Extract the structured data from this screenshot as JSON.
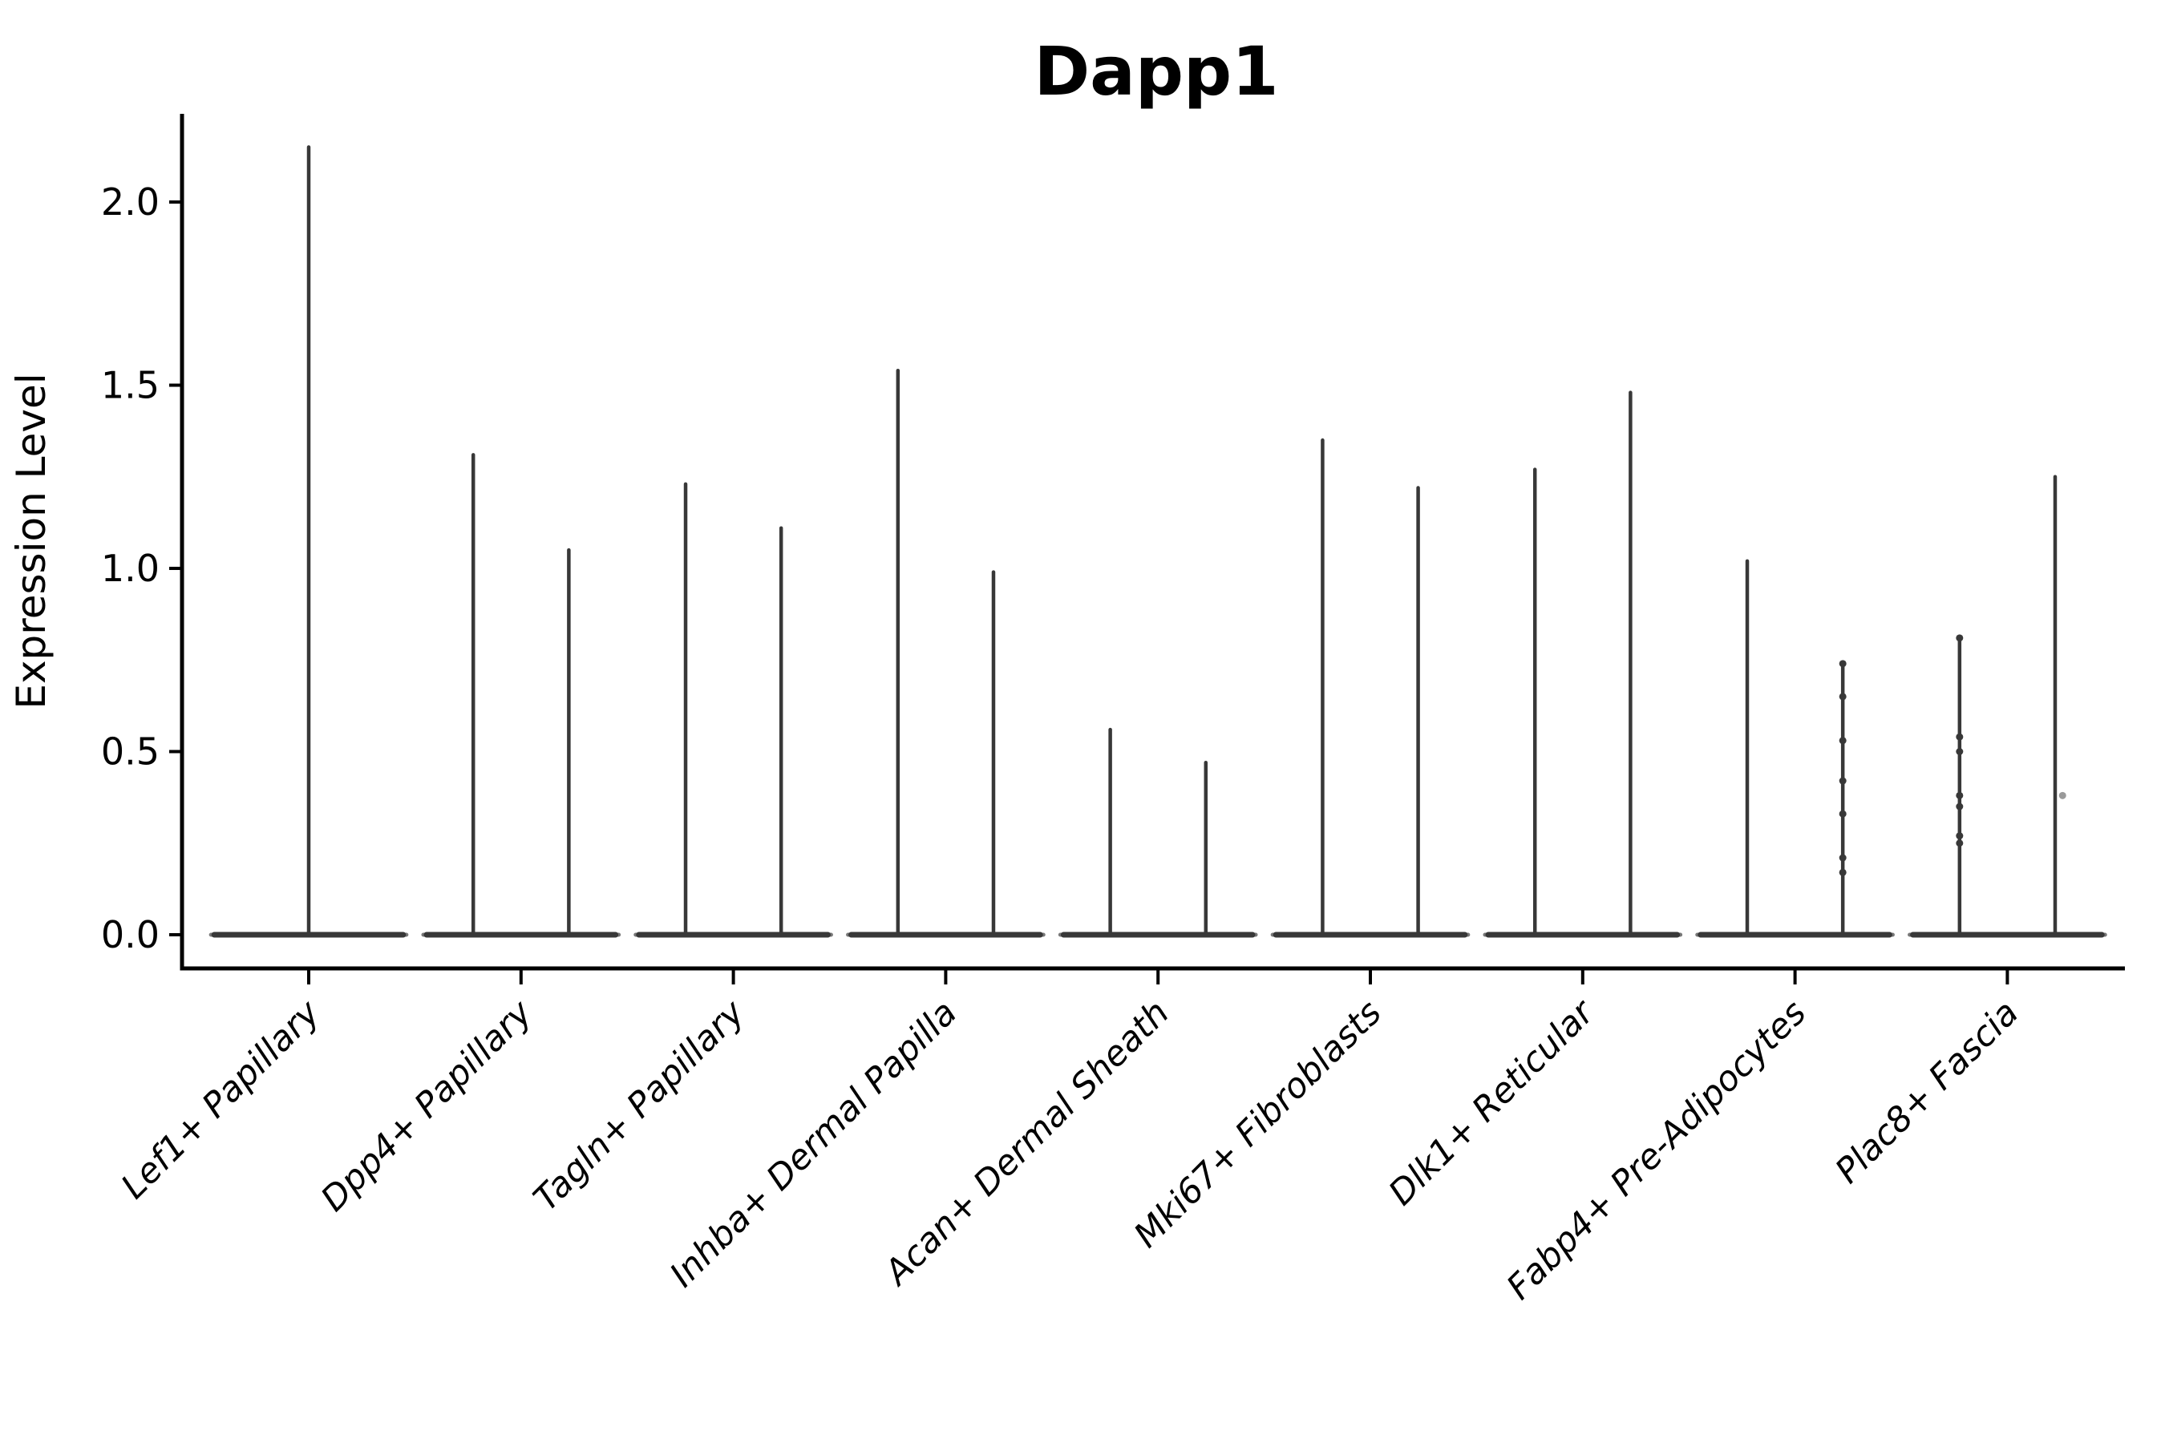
{
  "figure": {
    "title": "Dapp1",
    "ylabel": "Expression Level"
  },
  "chart_data": {
    "type": "violin",
    "title": "Dapp1",
    "xlabel": "",
    "ylabel": "Expression Level",
    "ylim": [
      -0.09,
      2.24
    ],
    "ytick_values": [
      0.0,
      0.5,
      1.0,
      1.5,
      2.0
    ],
    "ytick_labels": [
      "0.0",
      "0.5",
      "1.0",
      "1.5",
      "2.0"
    ],
    "grid": false,
    "legend": "none",
    "categories": [
      "Lef1+ Papillary",
      "Dpp4+ Papillary",
      "Tagln+ Papillary",
      "Inhba+ Dermal Papilla",
      "Acan+ Dermal Sheath",
      "Mki67+ Fibroblasts",
      "Dlk1+ Reticular",
      "Fabp4+ Pre-Adipocytes",
      "Plac8+ Fascia"
    ],
    "violins": [
      {
        "category": "Lef1+ Papillary",
        "body_value": 0,
        "tails": [
          {
            "offset": 0.0,
            "max": 2.15
          }
        ]
      },
      {
        "category": "Dpp4+ Papillary",
        "body_value": 0,
        "tails": [
          {
            "offset": -0.225,
            "max": 1.31
          },
          {
            "offset": 0.225,
            "max": 1.05
          }
        ]
      },
      {
        "category": "Tagln+ Papillary",
        "body_value": 0,
        "tails": [
          {
            "offset": -0.225,
            "max": 1.23
          },
          {
            "offset": 0.225,
            "max": 1.11
          }
        ]
      },
      {
        "category": "Inhba+ Dermal Papilla",
        "body_value": 0,
        "tails": [
          {
            "offset": -0.225,
            "max": 1.54
          },
          {
            "offset": 0.225,
            "max": 0.99
          }
        ]
      },
      {
        "category": "Acan+ Dermal Sheath",
        "body_value": 0,
        "tails": [
          {
            "offset": -0.225,
            "max": 0.56
          },
          {
            "offset": 0.225,
            "max": 0.47
          }
        ]
      },
      {
        "category": "Mki67+ Fibroblasts",
        "body_value": 0,
        "tails": [
          {
            "offset": -0.225,
            "max": 1.35
          },
          {
            "offset": 0.225,
            "max": 1.22
          }
        ]
      },
      {
        "category": "Dlk1+ Reticular",
        "body_value": 0,
        "tails": [
          {
            "offset": -0.225,
            "max": 1.27
          },
          {
            "offset": 0.225,
            "max": 1.48
          }
        ]
      },
      {
        "category": "Fabp4+ Pre-Adipocytes",
        "body_value": 0,
        "tails": [
          {
            "offset": -0.225,
            "max": 1.02
          },
          {
            "offset": 0.225,
            "max": 0.74
          }
        ]
      },
      {
        "category": "Plac8+ Fascia",
        "body_value": 0,
        "tails": [
          {
            "offset": -0.225,
            "max": 0.81
          },
          {
            "offset": 0.225,
            "max": 1.25
          }
        ]
      }
    ],
    "jitter_points": [
      {
        "category": "Fabp4+ Pre-Adipocytes",
        "offset": 0.225,
        "faint": false,
        "values": [
          0.74,
          0.65,
          0.53,
          0.42,
          0.33,
          0.21,
          0.17
        ]
      },
      {
        "category": "Plac8+ Fascia",
        "offset": -0.225,
        "faint": false,
        "values": [
          0.81,
          0.54,
          0.5,
          0.38,
          0.35,
          0.27,
          0.25
        ]
      },
      {
        "category": "Plac8+ Fascia",
        "offset": 0.26,
        "faint": true,
        "values": [
          0.38
        ]
      }
    ],
    "colors": {
      "violin": "#383838",
      "violin_tip": "#787878",
      "axis": "#000000",
      "text": "#000000",
      "faint_point": "#9a9a9a",
      "background": "#ffffff"
    }
  }
}
